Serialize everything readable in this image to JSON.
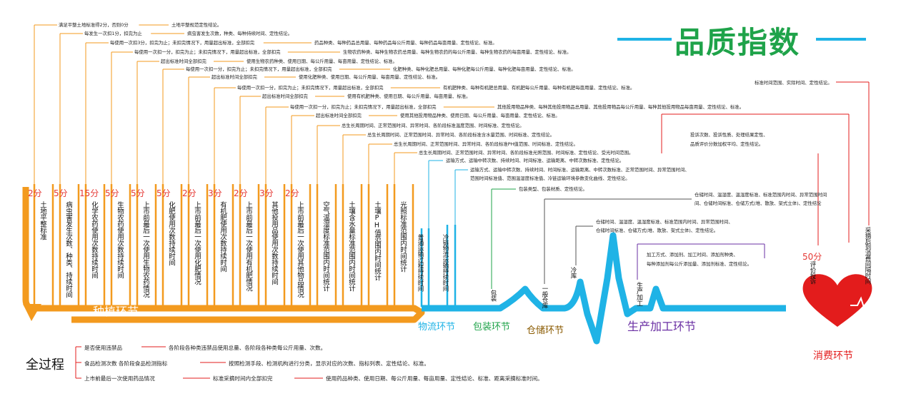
{
  "title": "品质指数",
  "stages": {
    "planting": "种植环节",
    "logistics": "物流环节",
    "packaging": "包装环节",
    "storage": "仓储环节",
    "processing": "生产加工环节",
    "consumption": "消费环节"
  },
  "planting_items": [
    {
      "score": "2分",
      "label": "土地平整标准",
      "desc1": "满足平整土地标准得2分，否则0分",
      "desc2": "土地平整规范定性结论。"
    },
    {
      "score": "5分",
      "label": "病虫害发生次数、种类、持续时间",
      "desc1": "每发生一次扣1分，扣完为止",
      "desc2": "病虫害发生次数，种类、每种持续时间、定性结论。"
    },
    {
      "score": "15分",
      "label": "化学农药使用次数持续时间",
      "desc1": "每使用一次扣3分，扣完为止；未扣完情况下，用量超出标准，全部扣完",
      "desc2": "药品种类、每种药品总用量、每种药品每公斤用量、每种药品每亩用量、定性结论、标准。"
    },
    {
      "score": "5分",
      "label": "生物农药使用次数持续时间",
      "desc1": "每使用一次扣一分，扣完为止；未扣完情况下，用量超出标准，全部扣完",
      "desc2": "生物农药种类、每种生物农药总用量、每种生物农药的每公斤用量、每种生物农药的每亩用量、定性结论、标准。"
    },
    {
      "score": "5分",
      "label": "上市前最后一次使用生物农药情况",
      "desc1": "超出标准时间全部扣完",
      "desc2": "使用生物农药种类、使用日期、每公斤用量、每亩用量、定性结论、标准。"
    },
    {
      "score": "5分",
      "label": "化肥使用次数持续时间",
      "desc1": "每使用一次扣一分，扣完为止；未扣完情况下，用量超出标准，全部扣完",
      "desc2": "化肥种类、每种化肥总用量、每种化肥每公斤用量、每种化肥每亩用量、定性结论、标准。"
    },
    {
      "score": "2分",
      "label": "上市前最后一次使用化肥情况",
      "desc1": "超出标准时间全部扣完",
      "desc2": "使用化肥种类、使用日期、每公斤用量、每亩用量、定性结论、标准。"
    },
    {
      "score": "3分",
      "label": "有机肥使用次数持续时间",
      "desc1": "每使用一次扣一分，扣完为止；未扣完情况下，用量超出标准，全部扣完",
      "desc2": "有机肥种类、每种有机肥总用量、有机肥每公斤用量、每种有机肥每亩用量、定性结论、标准。"
    },
    {
      "score": "2分",
      "label": "上市前最后一次使用有机肥情况",
      "desc1": "超出标准时间全部扣完",
      "desc2": "使用有机肥种类、使用日期、每公斤用量、每亩用量、标准。"
    },
    {
      "score": "3分",
      "label": "其他投用品使用次数持续时间",
      "desc1": "每使用一次扣一分，扣完为止；未扣完情况下，用量超出标准，全部扣完",
      "desc2": "其他投用物品种类、每种其他投用物品总用量、其他投用物品每公斤用量、每种其他投用物品每亩用量、定性结论、标准。"
    },
    {
      "score": "2分",
      "label": "上市前最后一次使用其他物品情况",
      "desc1": "超出标准时间全部扣完",
      "desc2": "使用其他投用物品种类、使用日期、每公斤用量、每亩用量、定性结论、标准。"
    },
    {
      "score": "",
      "label": "空气温湿度标准范围内时间统计",
      "desc1": "总生长周期时间、正常范围时间、异常时间、各阶段标准温度范围、时间标准、定性结论。",
      "desc2": ""
    },
    {
      "score": "",
      "label": "土壤含水量标准范围内时间统计",
      "desc1": "总生长周期时间、正常范围时间、异常时间、各阶段标准含水量范围、时间标准、定性结论。",
      "desc2": ""
    },
    {
      "score": "",
      "label": "土壤PH值范围内时间统计",
      "desc1": "总生长周期时间、正常范围时间、异常时间、各阶段标准PH值范围、时间标准、定性结论。",
      "desc2": ""
    },
    {
      "score": "",
      "label": "光照标准范围内时间统计",
      "desc1": "总生长周期时间、正常范围时间、异常时间、各阶段标准光照范围、时间标准、定性结论、受光时间范围。",
      "desc2": ""
    }
  ],
  "logistics": {
    "normal_label": "普通运输过程持续时间",
    "cold_label": "冷链物流运输持续时间",
    "desc1": "运输方式、运输中转次数、持续时间、时间标准、运输距离、中转次数标准、定性结论。",
    "desc2": "运输方式、运输中转次数、持续时间、时间标准、运输距离、中转次数标准、正常范围时间、异常范围时间、",
    "desc3": "范围时间标准值、范围温湿度标准值、冷链运输环境参数变化曲线、定性结论。"
  },
  "packaging": {
    "label": "包装",
    "desc": "包装类型、包装材质、定性结论。"
  },
  "storage": {
    "general_label": "一般仓库",
    "cold_label": "冷库",
    "general_desc1": "仓储时间、温湿度、温湿度标准、标准范围内时间、异常范围时间",
    "general_desc2": "间、仓储时间标准、仓储方式(堆、散放、架式立体)、定性结论",
    "cold_desc1": "仓储时间、温湿度、温湿度标准、标准范围内时间、异常范围时间、",
    "cold_desc2": "仓储时间标准、仓储方式(堆、散放、架式立体)、定性结论。"
  },
  "processing": {
    "label": "生产加工",
    "desc1": "加工方式、添加剂、加工时间、添加剂种类、",
    "desc2": "每种添加剂每公斤添加量、添加剂标准、定性结论。"
  },
  "consumption": {
    "score": "50分",
    "eval_label": "评价投诉",
    "time_label": "采摘后到消费间隔时间",
    "eval_desc1": "投诉次数、投诉性质、处理结果定性、",
    "eval_desc2": "品质评价分数加权平均、定性结论。",
    "time_desc": "标准时间范围、实际时间、定性结论。"
  },
  "whole_process": {
    "label": "全过程",
    "rows": [
      {
        "a": "是否使用违禁品",
        "b": "各阶段各种类违禁品使用总量、各阶段各种类每公斤用量、次数。",
        "c": ""
      },
      {
        "a": "食品检测次数 各阶段食品检测指标",
        "b": "按照检测手段、检测机构进行分类，显示对应的次数、指标列表、定性结论、标准。",
        "c": ""
      },
      {
        "a": "上市前最后一次使用药品情况",
        "b": "标准采摘时间内全部扣完",
        "c": "使用药品种类、使用日期、每公斤用量、每亩用量、定性结论、标准、距离采摘标准时间。"
      }
    ]
  },
  "colors": {
    "orange": "#f39a1e",
    "blue": "#1fb3e6",
    "green": "#1fa34a",
    "purple": "#6a2fa3",
    "red": "#e31c1c",
    "brown": "#8a5a00"
  }
}
